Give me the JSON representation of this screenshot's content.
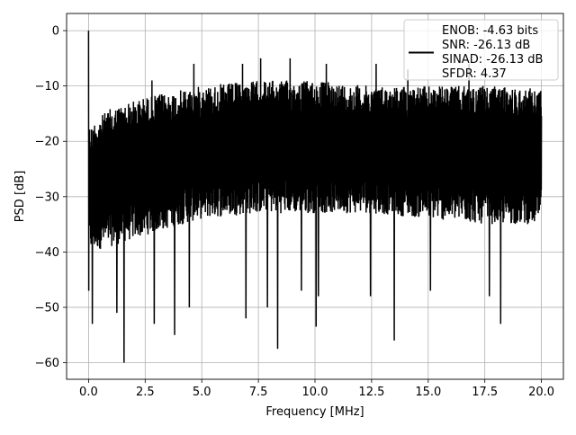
{
  "chart_data": {
    "type": "line",
    "title": "",
    "xlabel": "Frequency [MHz]",
    "ylabel": "PSD [dB]",
    "xlim": [
      -0.97,
      20.97
    ],
    "ylim": [
      -63,
      3.1
    ],
    "x_ticks": [
      0.0,
      2.5,
      5.0,
      7.5,
      10.0,
      12.5,
      15.0,
      17.5,
      20.0
    ],
    "x_tick_labels": [
      "0.0",
      "2.5",
      "5.0",
      "7.5",
      "10.0",
      "12.5",
      "15.0",
      "17.5",
      "20.0"
    ],
    "y_ticks": [
      0,
      -10,
      -20,
      -30,
      -40,
      -50,
      -60
    ],
    "y_tick_labels": [
      "0",
      "−10",
      "−20",
      "−30",
      "−40",
      "−50",
      "−60"
    ],
    "grid": true,
    "legend_placement": "top-right",
    "legend_entries": [
      "ENOB: -4.63 bits",
      "SNR: -26.13 dB",
      "SINAD: -26.13 dB",
      "SFDR: 4.37"
    ],
    "series": [
      {
        "color": "#000000",
        "x_range": [
          0,
          20
        ],
        "noise_floor_envelope": {
          "x": [
            0,
            1,
            2.5,
            5,
            7.5,
            10,
            12.5,
            15,
            17.5,
            20
          ],
          "upper": [
            -17,
            -14,
            -12,
            -10,
            -9,
            -9,
            -10,
            -10,
            -10,
            -10.5
          ],
          "lower": [
            -40,
            -39,
            -37,
            -34,
            -33,
            -33,
            -33,
            -34,
            -35,
            -35
          ]
        },
        "peaks": [
          {
            "x": 0.0,
            "y": 0.0
          },
          {
            "x": 2.8,
            "y": -9
          },
          {
            "x": 4.65,
            "y": -6
          },
          {
            "x": 6.8,
            "y": -6
          },
          {
            "x": 7.6,
            "y": -5
          },
          {
            "x": 8.9,
            "y": -5
          },
          {
            "x": 10.5,
            "y": -6
          },
          {
            "x": 12.7,
            "y": -6
          },
          {
            "x": 14.1,
            "y": -7
          },
          {
            "x": 16.8,
            "y": -6
          }
        ],
        "dips": [
          {
            "x": 0.0,
            "y": -47
          },
          {
            "x": 0.17,
            "y": -53
          },
          {
            "x": 1.25,
            "y": -51
          },
          {
            "x": 1.57,
            "y": -60
          },
          {
            "x": 2.9,
            "y": -53
          },
          {
            "x": 3.8,
            "y": -55
          },
          {
            "x": 4.45,
            "y": -50
          },
          {
            "x": 6.95,
            "y": -52
          },
          {
            "x": 7.9,
            "y": -50
          },
          {
            "x": 8.35,
            "y": -57.5
          },
          {
            "x": 9.4,
            "y": -47
          },
          {
            "x": 10.05,
            "y": -53.5
          },
          {
            "x": 10.15,
            "y": -48
          },
          {
            "x": 12.45,
            "y": -48
          },
          {
            "x": 13.5,
            "y": -56
          },
          {
            "x": 15.1,
            "y": -47
          },
          {
            "x": 17.7,
            "y": -48
          },
          {
            "x": 18.2,
            "y": -53
          }
        ]
      }
    ]
  }
}
